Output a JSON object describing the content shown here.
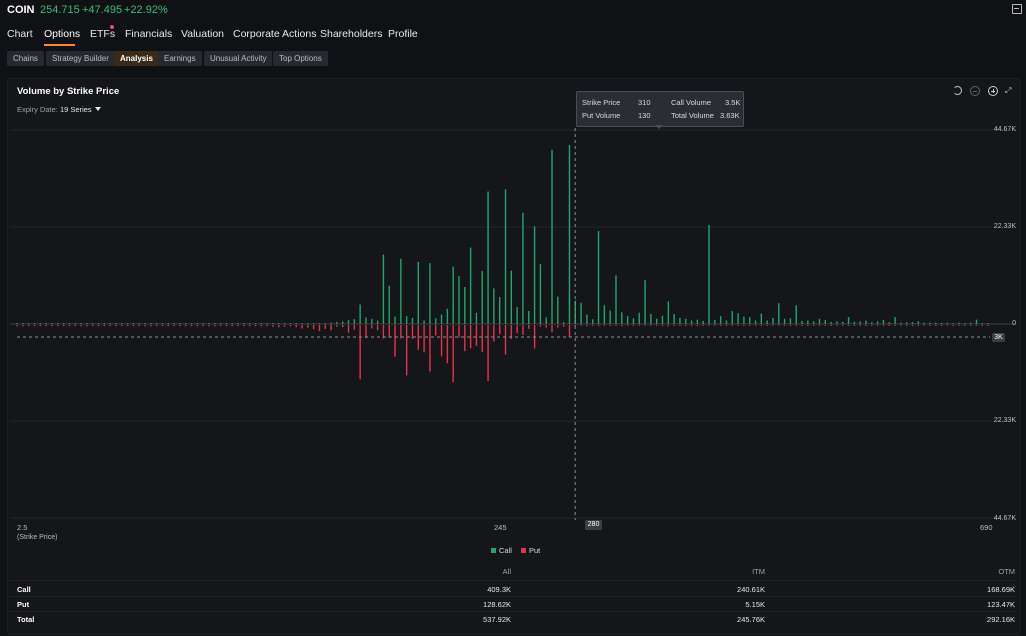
{
  "header": {
    "ticker": "COIN",
    "price": "254.715",
    "change": "+47.495",
    "change_pct": "+22.92%",
    "up_color": "#2fc37a"
  },
  "nav": {
    "items": [
      "Chart",
      "Options",
      "ETFs",
      "Financials",
      "Valuation",
      "Corporate Actions",
      "Shareholders",
      "Profile"
    ],
    "active": "Options",
    "accent": "#ff8a1f"
  },
  "subtabs": {
    "items": [
      "Chains",
      "Strategy Builder",
      "Analysis",
      "Earnings",
      "Unusual Activity",
      "Top Options"
    ],
    "active": "Analysis"
  },
  "panel": {
    "title": "Volume by Strike Price",
    "expiry_label": "Expiry Date:",
    "expiry_value": "19 Series",
    "toolbar_icons": [
      "undo-icon",
      "zoom-out-icon",
      "zoom-in-icon",
      "expand-icon"
    ]
  },
  "tooltip": {
    "strike_label": "Strike Price",
    "strike_value": "310",
    "put_label": "Put Volume",
    "put_value": "130",
    "call_label": "Call Volume",
    "call_value": "3.5K",
    "total_label": "Total Volume",
    "total_value": "3.63K"
  },
  "chart_data": {
    "type": "bar",
    "title": "Volume by Strike Price",
    "xlabel": "(Strike Price)",
    "x_ticks": [
      "2.5",
      "245",
      "690"
    ],
    "y_ticks_top": [
      "44.67K",
      "22.33K",
      "0"
    ],
    "y_ticks_bottom": [
      "22.33K",
      "44.67K"
    ],
    "ylim": [
      -44670,
      44670
    ],
    "crosshair": {
      "x_label": "280",
      "y_label": "3K"
    },
    "legend": [
      "Call",
      "Put"
    ],
    "colors": {
      "Call": "#1fa86a",
      "Put": "#e5334b"
    },
    "series": [
      {
        "name": "Call",
        "values": [
          200,
          200,
          200,
          200,
          200,
          200,
          200,
          200,
          200,
          200,
          200,
          200,
          200,
          200,
          200,
          200,
          200,
          200,
          200,
          200,
          200,
          200,
          200,
          200,
          200,
          200,
          200,
          200,
          200,
          200,
          200,
          200,
          200,
          200,
          200,
          200,
          200,
          200,
          200,
          200,
          200,
          200,
          200,
          200,
          200,
          200,
          200,
          200,
          200,
          200,
          200,
          200,
          200,
          200,
          300,
          500,
          600,
          900,
          1100,
          4500,
          1500,
          1200,
          800,
          16000,
          8800,
          1700,
          15000,
          1800,
          1400,
          14300,
          800,
          14000,
          1300,
          2200,
          3500,
          13200,
          11000,
          8500,
          17600,
          2600,
          12200,
          30500,
          8200,
          6200,
          31000,
          12300,
          3900,
          25600,
          3000,
          22500,
          13800,
          1500,
          40100,
          6300,
          400,
          41200,
          5400,
          4900,
          2200,
          1100,
          21400,
          4300,
          3100,
          11200,
          2700,
          1800,
          1300,
          2600,
          10100,
          2300,
          1200,
          1900,
          5200,
          2300,
          1400,
          1200,
          800,
          1000,
          700,
          22800,
          900,
          1800,
          800,
          3000,
          2500,
          1700,
          1600,
          800,
          2400,
          800,
          1400,
          4800,
          1200,
          1300,
          4300,
          700,
          800,
          600,
          1200,
          900,
          500,
          600,
          500,
          1600,
          500,
          600,
          800,
          400,
          600,
          900,
          400,
          1600,
          300,
          400,
          400,
          600,
          300,
          300,
          300,
          200,
          300,
          200,
          300,
          200,
          300,
          1000,
          200,
          200
        ]
      },
      {
        "name": "Put",
        "values": [
          300,
          300,
          300,
          300,
          300,
          300,
          300,
          300,
          300,
          300,
          300,
          300,
          300,
          300,
          300,
          300,
          300,
          300,
          300,
          300,
          300,
          300,
          300,
          300,
          300,
          300,
          300,
          300,
          300,
          300,
          300,
          300,
          300,
          300,
          300,
          300,
          300,
          300,
          300,
          300,
          300,
          300,
          300,
          300,
          400,
          500,
          400,
          300,
          500,
          800,
          600,
          1000,
          1400,
          900,
          1200,
          400,
          500,
          1800,
          1100,
          12500,
          3000,
          800,
          1200,
          3100,
          2900,
          7300,
          3100,
          11600,
          3200,
          5700,
          6300,
          10700,
          2400,
          7200,
          8800,
          13200,
          2900,
          6000,
          5400,
          4800,
          6200,
          12900,
          3800,
          2100,
          6800,
          3200,
          1900,
          2300,
          900,
          5400,
          400,
          600,
          1700,
          600,
          400,
          2800,
          300,
          200,
          300,
          200,
          200,
          200,
          200,
          200,
          300,
          200,
          200,
          200,
          200,
          200,
          200,
          200,
          300,
          200,
          200,
          200,
          200,
          200,
          200,
          200,
          200,
          200,
          200,
          200,
          200,
          200,
          200,
          200,
          200,
          200,
          200,
          200,
          200,
          200,
          200,
          200,
          200,
          200,
          200,
          200,
          200,
          200,
          200,
          200,
          200,
          200,
          200,
          200,
          200,
          200,
          200,
          200,
          200,
          200,
          200,
          200,
          200,
          200,
          200,
          200,
          200,
          200,
          200,
          200,
          200,
          200,
          200,
          200
        ]
      }
    ]
  },
  "summary": {
    "headers": [
      "All",
      "ITM",
      "OTM"
    ],
    "rows": [
      {
        "label": "Call",
        "values": [
          "409.3K",
          "240.61K",
          "168.69K"
        ]
      },
      {
        "label": "Put",
        "values": [
          "128.62K",
          "5.15K",
          "123.47K"
        ]
      },
      {
        "label": "Total",
        "values": [
          "537.92K",
          "245.76K",
          "292.16K"
        ]
      }
    ]
  }
}
